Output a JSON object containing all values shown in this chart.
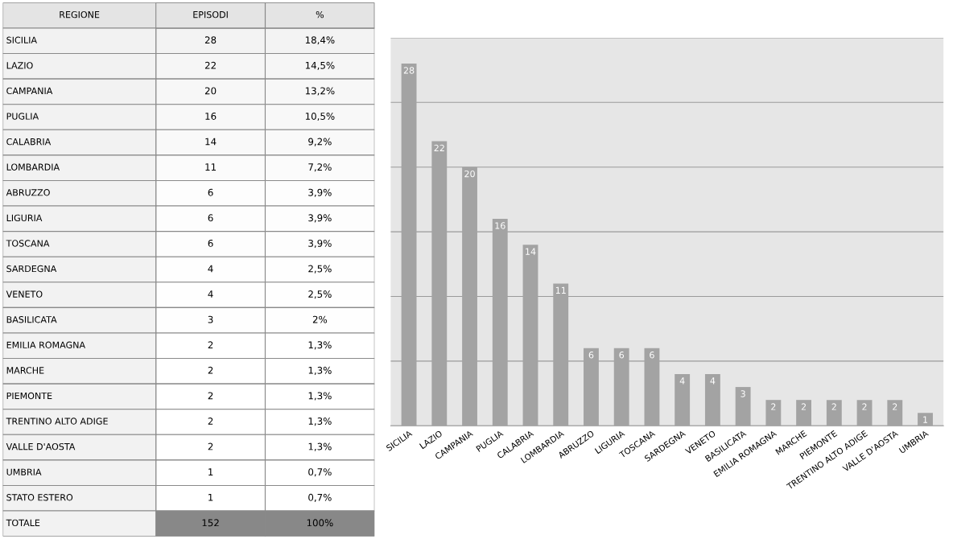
{
  "chart_data": [
    {
      "type": "heatmap",
      "ylabel": "REGIONE",
      "categories": [
        "EPISODI",
        "%"
      ],
      "y_categories": [
        "SICILIA",
        "LAZIO",
        "CAMPANIA",
        "PUGLIA",
        "CALABRIA",
        "LOMBARDIA",
        "ABRUZZO",
        "LIGURIA",
        "TOSCANA",
        "SARDEGNA",
        "VENETO",
        "BASILICATA",
        "EMILIA ROMAGNA",
        "MARCHE",
        "PIEMONTE",
        "TRENTINO ALTO ADIGE",
        "VALLE D'AOSTA",
        "UMBRIA",
        "STATO ESTERO",
        "TOTALE"
      ],
      "cells": [
        [
          28,
          18.4
        ],
        [
          22,
          14.5
        ],
        [
          20,
          13.2
        ],
        [
          16,
          10.5
        ],
        [
          14,
          9.2
        ],
        [
          11,
          7.2
        ],
        [
          6,
          3.9
        ],
        [
          6,
          3.9
        ],
        [
          6,
          3.9
        ],
        [
          4,
          2.5
        ],
        [
          4,
          2.5
        ],
        [
          3,
          2
        ],
        [
          2,
          1.3
        ],
        [
          2,
          1.3
        ],
        [
          2,
          1.3
        ],
        [
          2,
          1.3
        ],
        [
          2,
          1.3
        ],
        [
          1,
          0.7
        ],
        [
          1,
          0.7
        ],
        [
          152,
          100
        ]
      ],
      "cell_labels": [
        [
          "28",
          "18,4%"
        ],
        [
          "22",
          "14,5%"
        ],
        [
          "20",
          "13,2%"
        ],
        [
          "16",
          "10,5%"
        ],
        [
          "14",
          "9,2%"
        ],
        [
          "11",
          "7,2%"
        ],
        [
          "6",
          "3,9%"
        ],
        [
          "6",
          "3,9%"
        ],
        [
          "6",
          "3,9%"
        ],
        [
          "4",
          "2,5%"
        ],
        [
          "4",
          "2,5%"
        ],
        [
          "3",
          "2%"
        ],
        [
          "2",
          "1,3%"
        ],
        [
          "2",
          "1,3%"
        ],
        [
          "2",
          "1,3%"
        ],
        [
          "2",
          "1,3%"
        ],
        [
          "2",
          "1,3%"
        ],
        [
          "1",
          "0,7%"
        ],
        [
          "1",
          "0,7%"
        ],
        [
          "152",
          "100%"
        ]
      ]
    },
    {
      "type": "bar",
      "categories": [
        "SICILIA",
        "LAZIO",
        "CAMPANIA",
        "PUGLIA",
        "CALABRIA",
        "LOMBARDIA",
        "ABRUZZO",
        "LIGURIA",
        "TOSCANA",
        "SARDEGNA",
        "VENETO",
        "BASILICATA",
        "EMILIA ROMAGNA",
        "MARCHE",
        "PIEMONTE",
        "TRENTINO ALTO ADIGE",
        "VALLE D'AOSTA",
        "UMBRIA"
      ],
      "values": [
        28,
        22,
        20,
        16,
        14,
        11,
        6,
        6,
        6,
        4,
        4,
        3,
        2,
        2,
        2,
        2,
        2,
        1
      ],
      "color": "#a3a3a3",
      "data_labels": true,
      "ylim": [
        0,
        30
      ],
      "yticks": [
        {
          "value": 0,
          "label": null
        },
        {
          "value": 5,
          "label": null
        },
        {
          "value": 10,
          "label": null
        },
        {
          "value": 15,
          "label": null
        },
        {
          "value": 20,
          "label": null
        },
        {
          "value": 25,
          "label": null
        },
        {
          "value": 30,
          "label": null
        }
      ],
      "grid": "y",
      "tick_labels": "x"
    }
  ]
}
